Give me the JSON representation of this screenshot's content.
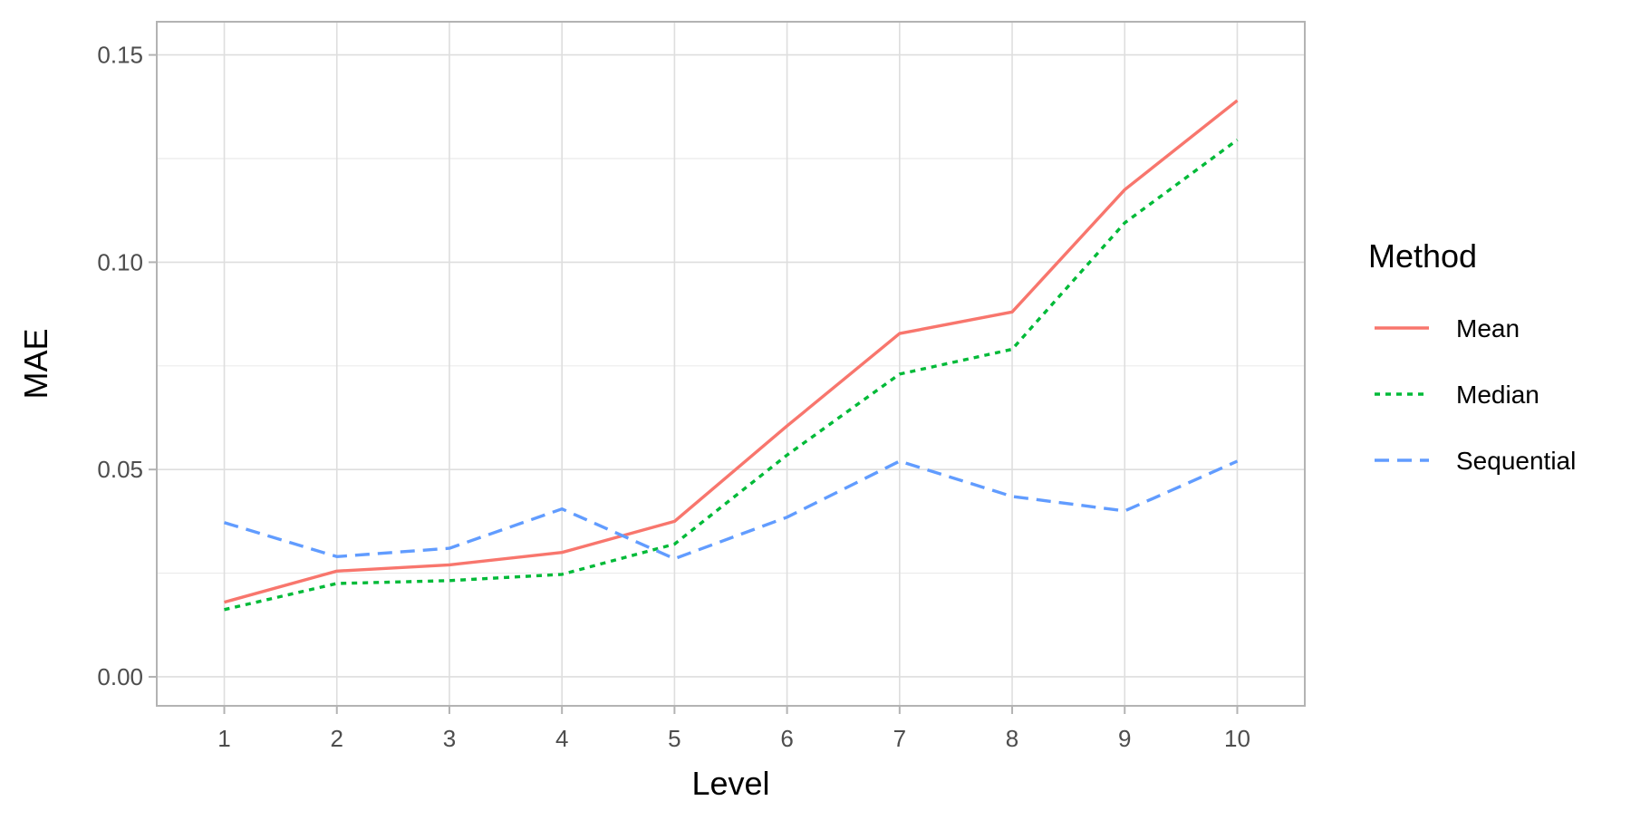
{
  "chart_data": {
    "type": "line",
    "title": "",
    "xlabel": "Level",
    "ylabel": "MAE",
    "x": [
      1,
      2,
      3,
      4,
      5,
      6,
      7,
      8,
      9,
      10
    ],
    "x_tick_labels": [
      "1",
      "2",
      "3",
      "4",
      "5",
      "6",
      "7",
      "8",
      "9",
      "10"
    ],
    "xlim": [
      0.4,
      10.6
    ],
    "ylim": [
      -0.007,
      0.158
    ],
    "y_ticks": [
      0.0,
      0.05,
      0.1,
      0.15
    ],
    "y_tick_labels": [
      "0.00",
      "0.05",
      "0.10",
      "0.15"
    ],
    "grid": true,
    "legend": {
      "title": "Method",
      "position": "right"
    },
    "series": [
      {
        "name": "Mean",
        "color": "#F8766D",
        "dash": "solid",
        "values": [
          0.018,
          0.0255,
          0.027,
          0.03,
          0.0375,
          0.0605,
          0.0828,
          0.088,
          0.1175,
          0.139
        ]
      },
      {
        "name": "Median",
        "color": "#00BA38",
        "dash": "dotted",
        "values": [
          0.0162,
          0.0225,
          0.0232,
          0.0247,
          0.032,
          0.0535,
          0.073,
          0.079,
          0.1095,
          0.1295
        ]
      },
      {
        "name": "Sequential",
        "color": "#619CFF",
        "dash": "dashed",
        "values": [
          0.0372,
          0.029,
          0.031,
          0.0405,
          0.0285,
          0.0385,
          0.052,
          0.0435,
          0.04,
          0.052
        ]
      }
    ]
  }
}
